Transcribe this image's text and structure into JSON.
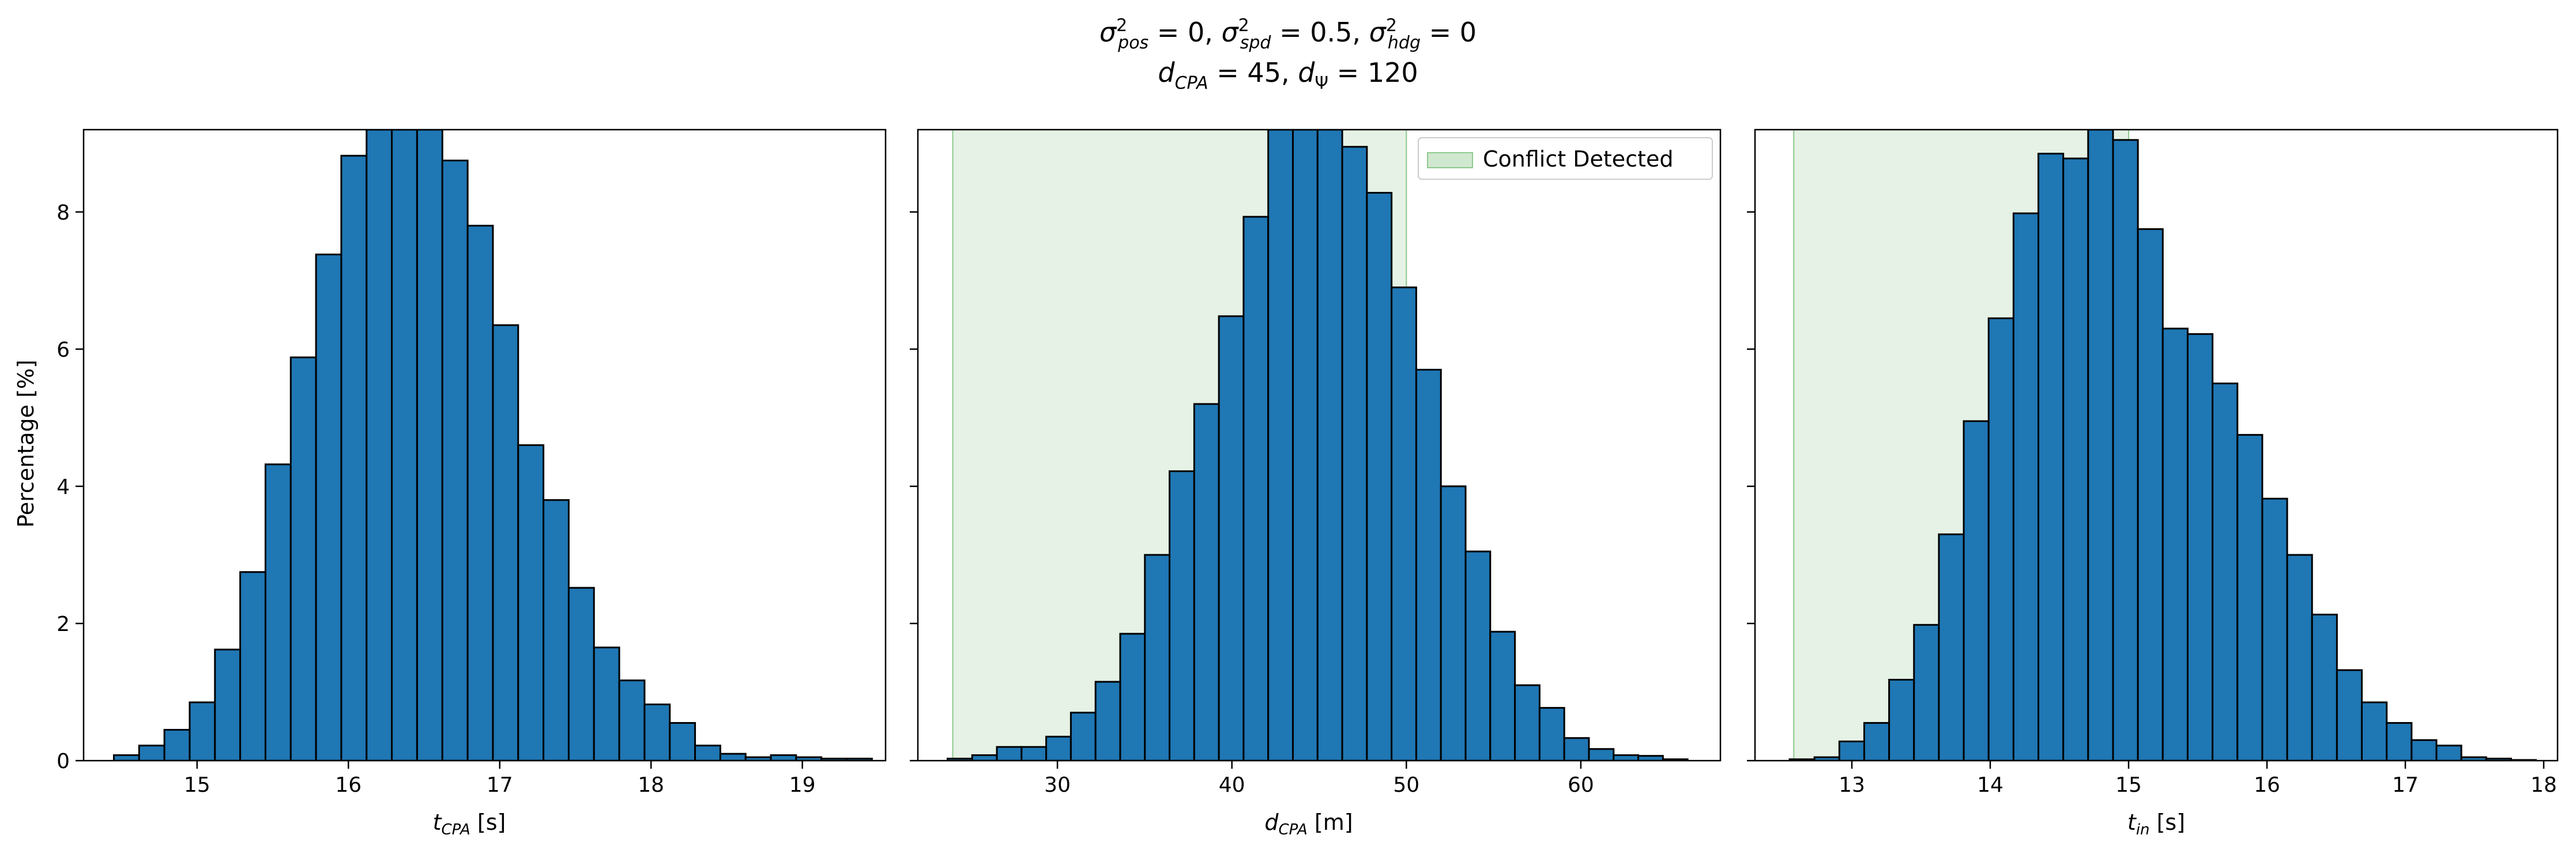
{
  "figure": {
    "suptitle_line1": "σ²pos = 0, σ²spd = 0.5, σ²hdg = 0",
    "suptitle_line2": "dCPA = 45, dΨ = 120",
    "shared_ylabel": "Percentage [%]",
    "bar_color": "#1f77b4",
    "edge_color": "#000000",
    "shade_color": "#cfe8cf"
  },
  "chart_data": [
    {
      "type": "bar",
      "xlabel": "tCPA [s]",
      "ylabel": "Percentage [%]",
      "xlim": [
        14.25,
        19.55
      ],
      "ylim": [
        0,
        9.2
      ],
      "xticks": [
        15,
        16,
        17,
        18,
        19
      ],
      "yticks": [
        0,
        2,
        4,
        6,
        8
      ],
      "bin_start": 14.45,
      "bin_width": 0.167,
      "values": [
        0.08,
        0.22,
        0.45,
        0.85,
        1.62,
        2.75,
        4.32,
        5.88,
        7.38,
        8.82,
        9.2,
        9.2,
        9.2,
        8.75,
        7.8,
        6.35,
        4.6,
        3.8,
        2.52,
        1.65,
        1.17,
        0.82,
        0.55,
        0.22,
        0.1,
        0.05,
        0.08,
        0.05,
        0.03,
        0.03
      ],
      "shade": null,
      "legend": null
    },
    {
      "type": "bar",
      "xlabel": "dCPA [m]",
      "ylabel": "",
      "xlim": [
        22.0,
        68.0
      ],
      "ylim": [
        0,
        9.2
      ],
      "xticks": [
        30,
        40,
        50,
        60
      ],
      "yticks": [
        0,
        2,
        4,
        6,
        8
      ],
      "bin_start": 23.7,
      "bin_width": 1.414,
      "values": [
        0.03,
        0.08,
        0.2,
        0.2,
        0.35,
        0.7,
        1.15,
        1.85,
        3.0,
        4.22,
        5.2,
        6.48,
        7.93,
        9.2,
        9.2,
        9.2,
        8.95,
        8.28,
        6.9,
        5.7,
        4.0,
        3.05,
        1.88,
        1.1,
        0.77,
        0.33,
        0.17,
        0.08,
        0.07,
        0.02
      ],
      "shade": [
        24.0,
        50.0
      ],
      "legend": {
        "label": "Conflict Detected",
        "placement": "top-right"
      }
    },
    {
      "type": "bar",
      "xlabel": "tin [s]",
      "ylabel": "",
      "xlim": [
        12.3,
        18.1
      ],
      "ylim": [
        0,
        9.2
      ],
      "xticks": [
        13,
        14,
        15,
        16,
        17,
        18
      ],
      "yticks": [
        0,
        2,
        4,
        6,
        8
      ],
      "bin_start": 12.55,
      "bin_width": 0.1798,
      "values": [
        0.02,
        0.05,
        0.28,
        0.55,
        1.18,
        1.98,
        3.3,
        4.95,
        6.45,
        7.98,
        8.85,
        8.78,
        9.2,
        9.05,
        7.75,
        6.3,
        6.22,
        5.5,
        4.75,
        3.82,
        3.0,
        2.13,
        1.32,
        0.85,
        0.55,
        0.3,
        0.22,
        0.05,
        0.03,
        0.01
      ],
      "shade": [
        12.58,
        15.0
      ],
      "legend": null
    }
  ]
}
